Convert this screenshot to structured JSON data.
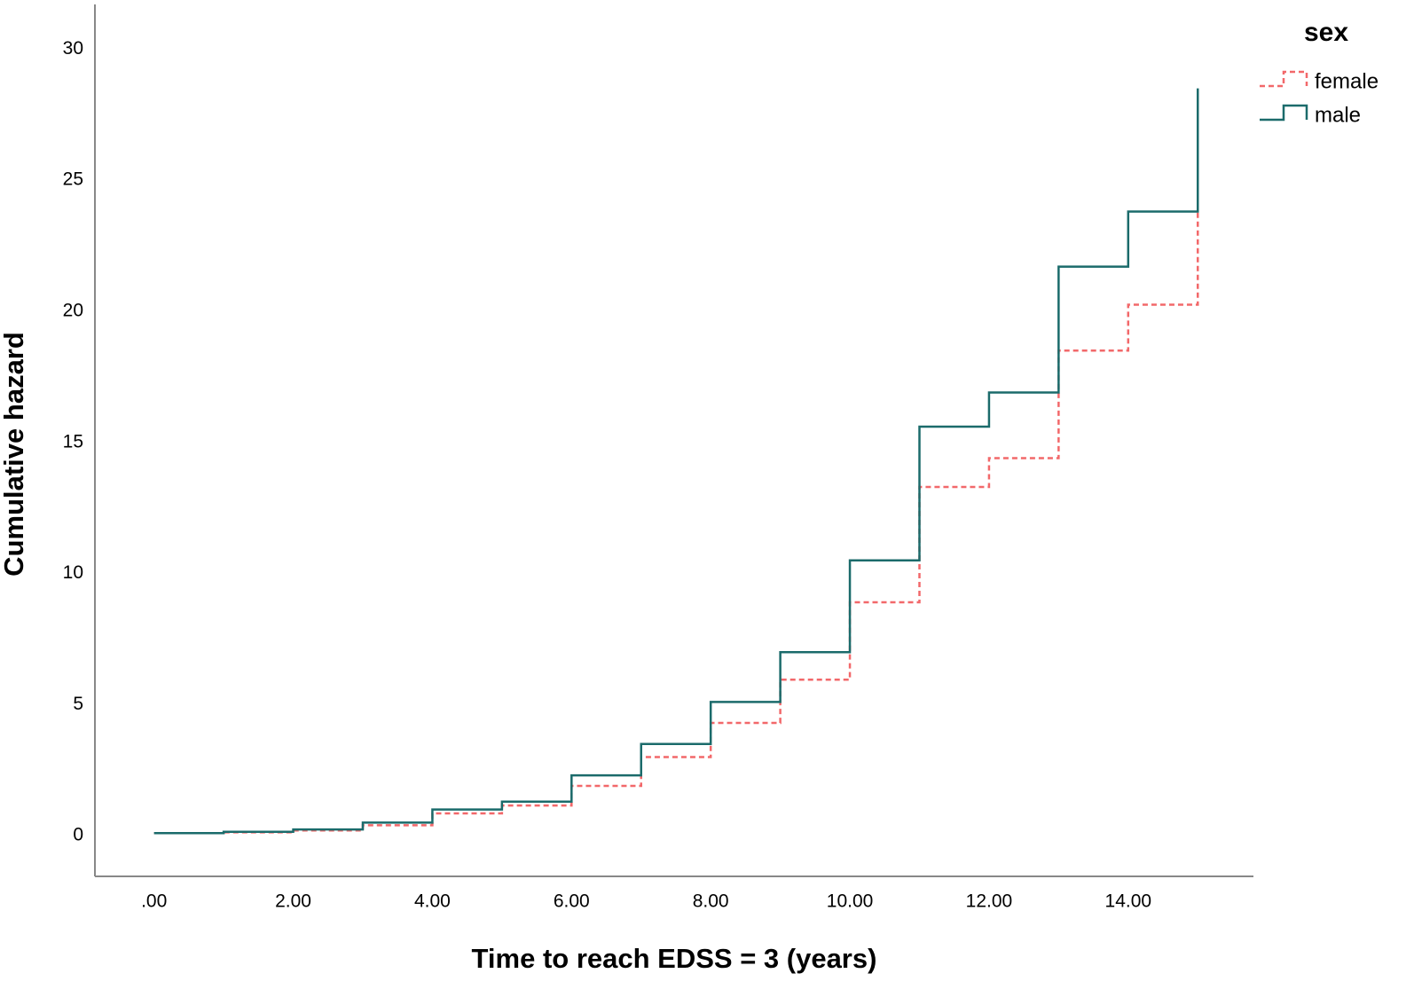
{
  "chart_data": {
    "type": "step",
    "x_label": "Time to reach EDSS = 3 (years)",
    "y_label": "Cumulative hazard",
    "legend_title": "sex",
    "legend_position": "top-right",
    "x": [
      0,
      1,
      2,
      3,
      4,
      5,
      6,
      7,
      8,
      9,
      10,
      11,
      12,
      13,
      14,
      15
    ],
    "series": [
      {
        "name": "female",
        "color": "#f2686a",
        "dashed": true,
        "values": [
          0.1,
          0.13,
          0.2,
          0.4,
          0.85,
          1.15,
          1.9,
          3.0,
          4.3,
          5.95,
          8.9,
          13.3,
          14.4,
          18.5,
          20.25,
          23.8
        ]
      },
      {
        "name": "male",
        "color": "#1b6b6b",
        "dashed": false,
        "values": [
          0.1,
          0.15,
          0.24,
          0.5,
          1.0,
          1.3,
          2.3,
          3.5,
          5.1,
          7.0,
          10.5,
          15.6,
          16.9,
          21.7,
          23.8,
          28.5
        ]
      }
    ],
    "xlim": [
      -0.85,
      15.8
    ],
    "ylim": [
      -1.55,
      31.7
    ],
    "xticks": [
      {
        "value": 0,
        "label": ".00"
      },
      {
        "value": 2,
        "label": "2.00"
      },
      {
        "value": 4,
        "label": "4.00"
      },
      {
        "value": 6,
        "label": "6.00"
      },
      {
        "value": 8,
        "label": "8.00"
      },
      {
        "value": 10,
        "label": "10.00"
      },
      {
        "value": 12,
        "label": "12.00"
      },
      {
        "value": 14,
        "label": "14.00"
      }
    ],
    "yticks": [
      0,
      5,
      10,
      15,
      20,
      25,
      30
    ],
    "grid": false
  }
}
